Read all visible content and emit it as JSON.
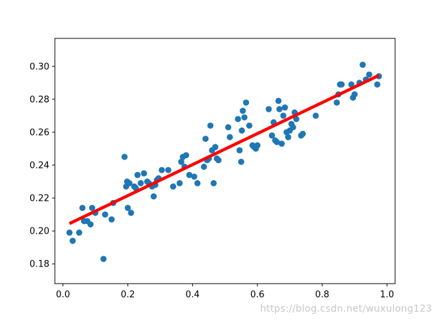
{
  "chart_data": {
    "type": "scatter",
    "title": "",
    "xlabel": "",
    "ylabel": "",
    "xlim": [
      -0.025,
      1.025
    ],
    "ylim": [
      0.168,
      0.317
    ],
    "x_ticks": [
      0.0,
      0.2,
      0.4,
      0.6,
      0.8,
      1.0
    ],
    "y_ticks": [
      0.18,
      0.2,
      0.22,
      0.24,
      0.26,
      0.28,
      0.3
    ],
    "grid": false,
    "colors": {
      "points": "#1f77b4",
      "fit_line": "#ff0000"
    },
    "points": [
      {
        "x": 0.02,
        "y": 0.199
      },
      {
        "x": 0.03,
        "y": 0.194
      },
      {
        "x": 0.05,
        "y": 0.199
      },
      {
        "x": 0.06,
        "y": 0.214
      },
      {
        "x": 0.065,
        "y": 0.206
      },
      {
        "x": 0.075,
        "y": 0.206
      },
      {
        "x": 0.085,
        "y": 0.204
      },
      {
        "x": 0.09,
        "y": 0.214
      },
      {
        "x": 0.1,
        "y": 0.211
      },
      {
        "x": 0.125,
        "y": 0.183
      },
      {
        "x": 0.13,
        "y": 0.21
      },
      {
        "x": 0.15,
        "y": 0.207
      },
      {
        "x": 0.155,
        "y": 0.217
      },
      {
        "x": 0.19,
        "y": 0.245
      },
      {
        "x": 0.195,
        "y": 0.227
      },
      {
        "x": 0.198,
        "y": 0.23
      },
      {
        "x": 0.2,
        "y": 0.214
      },
      {
        "x": 0.205,
        "y": 0.229
      },
      {
        "x": 0.21,
        "y": 0.211
      },
      {
        "x": 0.22,
        "y": 0.227
      },
      {
        "x": 0.225,
        "y": 0.226
      },
      {
        "x": 0.23,
        "y": 0.234
      },
      {
        "x": 0.24,
        "y": 0.229
      },
      {
        "x": 0.25,
        "y": 0.235
      },
      {
        "x": 0.26,
        "y": 0.23
      },
      {
        "x": 0.265,
        "y": 0.229
      },
      {
        "x": 0.275,
        "y": 0.227
      },
      {
        "x": 0.28,
        "y": 0.221
      },
      {
        "x": 0.285,
        "y": 0.228
      },
      {
        "x": 0.29,
        "y": 0.231
      },
      {
        "x": 0.295,
        "y": 0.232
      },
      {
        "x": 0.305,
        "y": 0.237
      },
      {
        "x": 0.325,
        "y": 0.237
      },
      {
        "x": 0.34,
        "y": 0.227
      },
      {
        "x": 0.36,
        "y": 0.229
      },
      {
        "x": 0.365,
        "y": 0.242
      },
      {
        "x": 0.37,
        "y": 0.245
      },
      {
        "x": 0.375,
        "y": 0.239
      },
      {
        "x": 0.38,
        "y": 0.246
      },
      {
        "x": 0.39,
        "y": 0.234
      },
      {
        "x": 0.405,
        "y": 0.233
      },
      {
        "x": 0.415,
        "y": 0.229
      },
      {
        "x": 0.435,
        "y": 0.239
      },
      {
        "x": 0.44,
        "y": 0.256
      },
      {
        "x": 0.445,
        "y": 0.243
      },
      {
        "x": 0.45,
        "y": 0.244
      },
      {
        "x": 0.455,
        "y": 0.264
      },
      {
        "x": 0.46,
        "y": 0.249
      },
      {
        "x": 0.465,
        "y": 0.229
      },
      {
        "x": 0.47,
        "y": 0.251
      },
      {
        "x": 0.475,
        "y": 0.244
      },
      {
        "x": 0.48,
        "y": 0.243
      },
      {
        "x": 0.51,
        "y": 0.263
      },
      {
        "x": 0.515,
        "y": 0.257
      },
      {
        "x": 0.54,
        "y": 0.268
      },
      {
        "x": 0.545,
        "y": 0.249
      },
      {
        "x": 0.55,
        "y": 0.242
      },
      {
        "x": 0.552,
        "y": 0.261
      },
      {
        "x": 0.555,
        "y": 0.273
      },
      {
        "x": 0.56,
        "y": 0.269
      },
      {
        "x": 0.565,
        "y": 0.278
      },
      {
        "x": 0.575,
        "y": 0.264
      },
      {
        "x": 0.585,
        "y": 0.252
      },
      {
        "x": 0.59,
        "y": 0.251
      },
      {
        "x": 0.595,
        "y": 0.25
      },
      {
        "x": 0.6,
        "y": 0.252
      },
      {
        "x": 0.635,
        "y": 0.274
      },
      {
        "x": 0.645,
        "y": 0.258
      },
      {
        "x": 0.65,
        "y": 0.266
      },
      {
        "x": 0.655,
        "y": 0.255
      },
      {
        "x": 0.66,
        "y": 0.254
      },
      {
        "x": 0.665,
        "y": 0.279
      },
      {
        "x": 0.668,
        "y": 0.274
      },
      {
        "x": 0.675,
        "y": 0.253
      },
      {
        "x": 0.68,
        "y": 0.27
      },
      {
        "x": 0.685,
        "y": 0.275
      },
      {
        "x": 0.69,
        "y": 0.26
      },
      {
        "x": 0.695,
        "y": 0.257
      },
      {
        "x": 0.7,
        "y": 0.261
      },
      {
        "x": 0.705,
        "y": 0.265
      },
      {
        "x": 0.71,
        "y": 0.263
      },
      {
        "x": 0.715,
        "y": 0.272
      },
      {
        "x": 0.72,
        "y": 0.268
      },
      {
        "x": 0.735,
        "y": 0.258
      },
      {
        "x": 0.74,
        "y": 0.259
      },
      {
        "x": 0.78,
        "y": 0.27
      },
      {
        "x": 0.845,
        "y": 0.278
      },
      {
        "x": 0.85,
        "y": 0.283
      },
      {
        "x": 0.855,
        "y": 0.289
      },
      {
        "x": 0.86,
        "y": 0.289
      },
      {
        "x": 0.89,
        "y": 0.289
      },
      {
        "x": 0.895,
        "y": 0.281
      },
      {
        "x": 0.9,
        "y": 0.283
      },
      {
        "x": 0.915,
        "y": 0.29
      },
      {
        "x": 0.925,
        "y": 0.301
      },
      {
        "x": 0.935,
        "y": 0.292
      },
      {
        "x": 0.945,
        "y": 0.295
      },
      {
        "x": 0.97,
        "y": 0.289
      },
      {
        "x": 0.975,
        "y": 0.294
      }
    ],
    "fit_line": {
      "x": [
        0.02,
        0.975
      ],
      "y": [
        0.2045,
        0.2945
      ]
    }
  },
  "watermark": "https://blog.csdn.net/wuxulong123"
}
